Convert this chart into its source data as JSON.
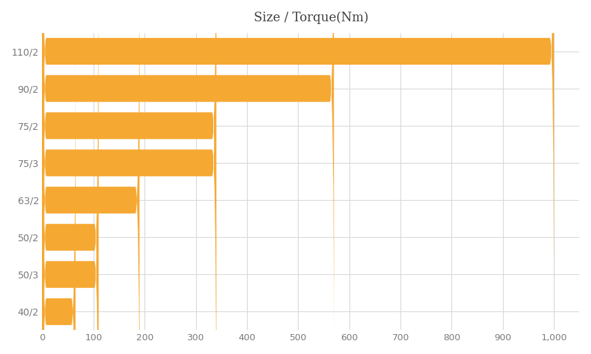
{
  "title": "Size / Torque(Nm)",
  "categories": [
    "40/2",
    "50/3",
    "50/2",
    "63/2",
    "75/3",
    "75/2",
    "90/2",
    "110/2"
  ],
  "values": [
    65,
    110,
    110,
    190,
    340,
    340,
    570,
    1000
  ],
  "bar_color": "#F5A832",
  "background_color": "#ffffff",
  "grid_color": "#d8d8d8",
  "title_fontsize": 13,
  "label_fontsize": 10,
  "tick_fontsize": 9.5,
  "xlim": [
    0,
    1050
  ],
  "xticks": [
    0,
    100,
    200,
    300,
    400,
    500,
    600,
    700,
    800,
    900,
    1000
  ],
  "bar_height": 0.72
}
